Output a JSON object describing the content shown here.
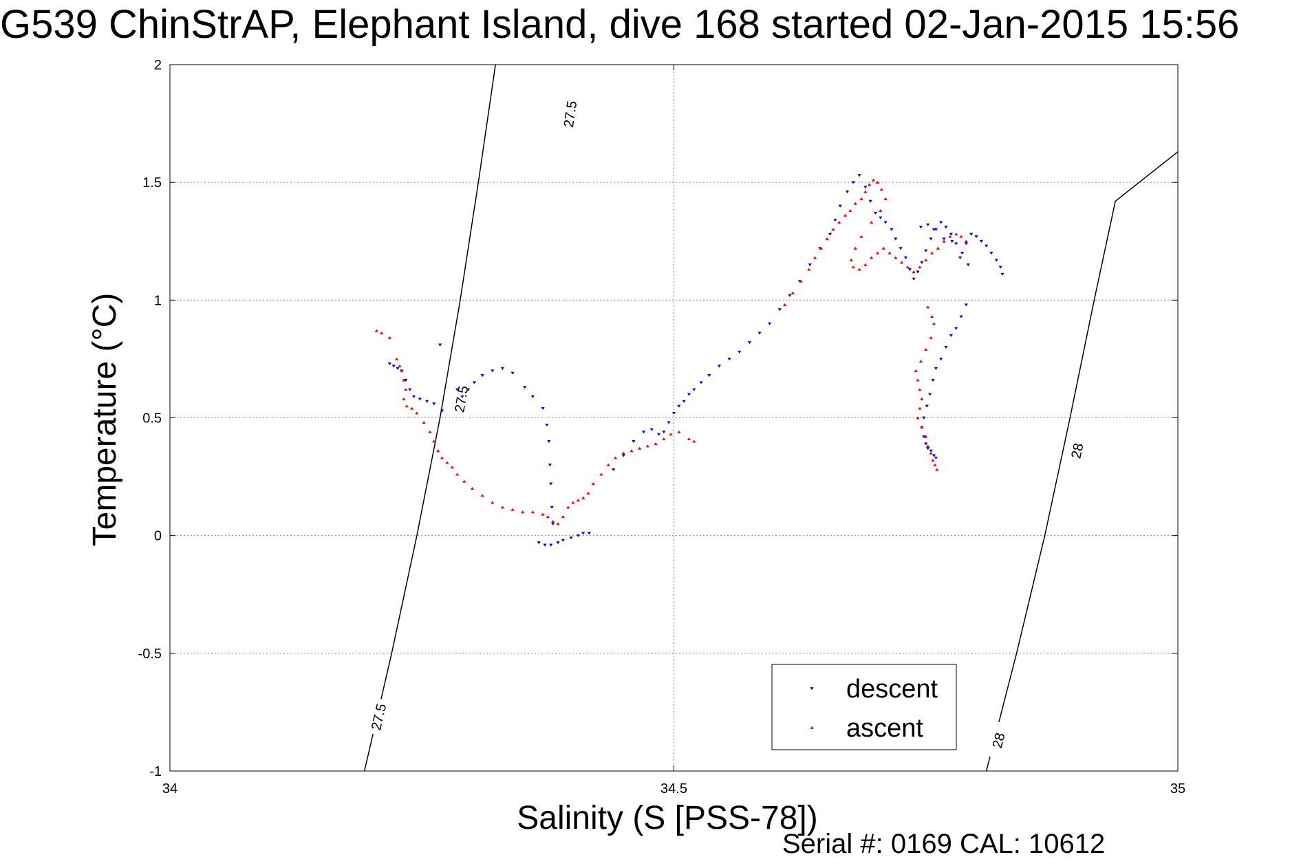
{
  "title": "G539 ChinStrAP, Elephant Island, dive 168 started 02-Jan-2015 15:56",
  "footer": "Serial #: 0169 CAL: 10612",
  "chart_data": {
    "type": "scatter",
    "title": "G539 ChinStrAP, Elephant Island, dive 168 started 02-Jan-2015 15:56",
    "xlabel": "Salinity (S [PSS-78])",
    "ylabel": "Temperature (°C)",
    "xlim": [
      34,
      35
    ],
    "ylim": [
      -1,
      2
    ],
    "x_ticks": [
      34,
      34.5,
      35
    ],
    "x_tick_labels": [
      "34",
      "34.5",
      "35"
    ],
    "y_ticks": [
      -1,
      -0.5,
      0,
      0.5,
      1,
      1.5,
      2
    ],
    "y_tick_labels": [
      "-1",
      "-0.5",
      "0",
      "0.5",
      "1",
      "1.5",
      "2"
    ],
    "grid": true,
    "legend_position": "bottom-right",
    "colors": {
      "descent": "#0000ff",
      "ascent": "#ff0000",
      "contour": "#000000",
      "grid": "#888888"
    },
    "series": [
      {
        "name": "descent",
        "marker": "triangle-down",
        "color": "#0000ff",
        "points": [
          [
            34.218,
            0.73
          ],
          [
            34.222,
            0.72
          ],
          [
            34.226,
            0.71
          ],
          [
            34.23,
            0.7
          ],
          [
            34.234,
            0.66
          ],
          [
            34.238,
            0.62
          ],
          [
            34.242,
            0.59
          ],
          [
            34.248,
            0.58
          ],
          [
            34.255,
            0.57
          ],
          [
            34.262,
            0.56
          ],
          [
            34.27,
            0.53
          ],
          [
            34.268,
            0.81
          ],
          [
            34.285,
            0.62
          ],
          [
            34.29,
            0.59
          ],
          [
            34.296,
            0.62
          ],
          [
            34.302,
            0.65
          ],
          [
            34.31,
            0.68
          ],
          [
            34.32,
            0.7
          ],
          [
            34.33,
            0.71
          ],
          [
            34.34,
            0.69
          ],
          [
            34.352,
            0.63
          ],
          [
            34.36,
            0.59
          ],
          [
            34.37,
            0.54
          ],
          [
            34.374,
            0.47
          ],
          [
            34.376,
            0.4
          ],
          [
            34.377,
            0.3
          ],
          [
            34.378,
            0.22
          ],
          [
            34.379,
            0.12
          ],
          [
            34.38,
            0.05
          ],
          [
            34.366,
            -0.03
          ],
          [
            34.372,
            -0.04
          ],
          [
            34.378,
            -0.04
          ],
          [
            34.385,
            -0.03
          ],
          [
            34.39,
            -0.02
          ],
          [
            34.398,
            -0.01
          ],
          [
            34.405,
            0.0
          ],
          [
            34.41,
            0.01
          ],
          [
            34.416,
            0.01
          ],
          [
            34.44,
            0.28
          ],
          [
            34.45,
            0.34
          ],
          [
            34.46,
            0.4
          ],
          [
            34.47,
            0.44
          ],
          [
            34.478,
            0.45
          ],
          [
            34.485,
            0.43
          ],
          [
            34.49,
            0.44
          ],
          [
            34.495,
            0.48
          ],
          [
            34.5,
            0.52
          ],
          [
            34.505,
            0.55
          ],
          [
            34.51,
            0.57
          ],
          [
            34.515,
            0.6
          ],
          [
            34.52,
            0.62
          ],
          [
            34.527,
            0.65
          ],
          [
            34.535,
            0.68
          ],
          [
            34.545,
            0.72
          ],
          [
            34.555,
            0.75
          ],
          [
            34.565,
            0.78
          ],
          [
            34.575,
            0.82
          ],
          [
            34.585,
            0.86
          ],
          [
            34.595,
            0.9
          ],
          [
            34.605,
            0.96
          ],
          [
            34.615,
            1.02
          ],
          [
            34.625,
            1.08
          ],
          [
            34.635,
            1.15
          ],
          [
            34.645,
            1.22
          ],
          [
            34.655,
            1.28
          ],
          [
            34.66,
            1.34
          ],
          [
            34.665,
            1.4
          ],
          [
            34.672,
            1.46
          ],
          [
            34.678,
            1.5
          ],
          [
            34.684,
            1.53
          ],
          [
            34.69,
            1.48
          ],
          [
            34.695,
            1.42
          ],
          [
            34.7,
            1.37
          ],
          [
            34.705,
            1.35
          ],
          [
            34.71,
            1.33
          ],
          [
            34.716,
            1.3
          ],
          [
            34.72,
            1.26
          ],
          [
            34.725,
            1.22
          ],
          [
            34.73,
            1.18
          ],
          [
            34.734,
            1.13
          ],
          [
            34.738,
            1.09
          ],
          [
            34.742,
            1.12
          ],
          [
            34.746,
            1.16
          ],
          [
            34.75,
            1.21
          ],
          [
            34.755,
            1.26
          ],
          [
            34.76,
            1.3
          ],
          [
            34.765,
            1.33
          ],
          [
            34.77,
            1.31
          ],
          [
            34.775,
            1.28
          ],
          [
            34.78,
            1.24
          ],
          [
            34.786,
            1.2
          ],
          [
            34.79,
            1.24
          ],
          [
            34.795,
            1.28
          ],
          [
            34.8,
            1.27
          ],
          [
            34.805,
            1.25
          ],
          [
            34.81,
            1.23
          ],
          [
            34.815,
            1.2
          ],
          [
            34.82,
            1.17
          ],
          [
            34.824,
            1.14
          ],
          [
            34.826,
            1.11
          ],
          [
            34.745,
            1.31
          ],
          [
            34.752,
            1.32
          ],
          [
            34.758,
            1.3
          ],
          [
            34.768,
            1.26
          ],
          [
            34.776,
            1.25
          ],
          [
            34.784,
            1.18
          ],
          [
            34.792,
            1.15
          ],
          [
            34.79,
            0.98
          ],
          [
            34.785,
            0.93
          ],
          [
            34.78,
            0.88
          ],
          [
            34.775,
            0.85
          ],
          [
            34.77,
            0.8
          ],
          [
            34.765,
            0.75
          ],
          [
            34.76,
            0.71
          ],
          [
            34.757,
            0.66
          ],
          [
            34.754,
            0.6
          ],
          [
            34.751,
            0.55
          ],
          [
            34.748,
            0.5
          ],
          [
            34.746,
            0.46
          ],
          [
            34.748,
            0.42
          ],
          [
            34.75,
            0.39
          ],
          [
            34.752,
            0.37
          ],
          [
            34.755,
            0.36
          ],
          [
            34.758,
            0.34
          ],
          [
            34.76,
            0.33
          ]
        ]
      },
      {
        "name": "ascent",
        "marker": "triangle-up",
        "color": "#ff0000",
        "points": [
          [
            34.205,
            0.87
          ],
          [
            34.21,
            0.86
          ],
          [
            34.218,
            0.84
          ],
          [
            34.225,
            0.75
          ],
          [
            34.228,
            0.72
          ],
          [
            34.23,
            0.7
          ],
          [
            34.232,
            0.66
          ],
          [
            34.234,
            0.62
          ],
          [
            34.232,
            0.58
          ],
          [
            34.235,
            0.55
          ],
          [
            34.24,
            0.54
          ],
          [
            34.245,
            0.52
          ],
          [
            34.252,
            0.48
          ],
          [
            34.258,
            0.44
          ],
          [
            34.262,
            0.4
          ],
          [
            34.266,
            0.36
          ],
          [
            34.27,
            0.33
          ],
          [
            34.275,
            0.31
          ],
          [
            34.28,
            0.29
          ],
          [
            34.285,
            0.26
          ],
          [
            34.292,
            0.23
          ],
          [
            34.3,
            0.2
          ],
          [
            34.31,
            0.17
          ],
          [
            34.32,
            0.14
          ],
          [
            34.33,
            0.12
          ],
          [
            34.34,
            0.11
          ],
          [
            34.35,
            0.1
          ],
          [
            34.36,
            0.1
          ],
          [
            34.37,
            0.09
          ],
          [
            34.375,
            0.08
          ],
          [
            34.38,
            0.06
          ],
          [
            34.385,
            0.05
          ],
          [
            34.39,
            0.08
          ],
          [
            34.395,
            0.12
          ],
          [
            34.4,
            0.14
          ],
          [
            34.405,
            0.15
          ],
          [
            34.41,
            0.16
          ],
          [
            34.415,
            0.18
          ],
          [
            34.42,
            0.22
          ],
          [
            34.428,
            0.26
          ],
          [
            34.435,
            0.3
          ],
          [
            34.442,
            0.33
          ],
          [
            34.45,
            0.35
          ],
          [
            34.458,
            0.36
          ],
          [
            34.466,
            0.37
          ],
          [
            34.474,
            0.38
          ],
          [
            34.482,
            0.39
          ],
          [
            34.49,
            0.41
          ],
          [
            34.497,
            0.43
          ],
          [
            34.505,
            0.44
          ],
          [
            34.515,
            0.41
          ],
          [
            34.52,
            0.4
          ],
          [
            34.61,
            0.98
          ],
          [
            34.618,
            1.03
          ],
          [
            34.626,
            1.08
          ],
          [
            34.634,
            1.13
          ],
          [
            34.64,
            1.18
          ],
          [
            34.646,
            1.22
          ],
          [
            34.652,
            1.26
          ],
          [
            34.658,
            1.3
          ],
          [
            34.664,
            1.33
          ],
          [
            34.67,
            1.36
          ],
          [
            34.675,
            1.38
          ],
          [
            34.68,
            1.41
          ],
          [
            34.686,
            1.43
          ],
          [
            34.69,
            1.46
          ],
          [
            34.694,
            1.49
          ],
          [
            34.698,
            1.51
          ],
          [
            34.702,
            1.5
          ],
          [
            34.706,
            1.47
          ],
          [
            34.71,
            1.43
          ],
          [
            34.705,
            1.38
          ],
          [
            34.696,
            1.33
          ],
          [
            34.686,
            1.27
          ],
          [
            34.68,
            1.22
          ],
          [
            34.676,
            1.17
          ],
          [
            34.678,
            1.14
          ],
          [
            34.684,
            1.13
          ],
          [
            34.69,
            1.15
          ],
          [
            34.696,
            1.18
          ],
          [
            34.702,
            1.2
          ],
          [
            34.708,
            1.22
          ],
          [
            34.714,
            1.2
          ],
          [
            34.72,
            1.18
          ],
          [
            34.726,
            1.16
          ],
          [
            34.732,
            1.14
          ],
          [
            34.738,
            1.12
          ],
          [
            34.744,
            1.14
          ],
          [
            34.75,
            1.17
          ],
          [
            34.756,
            1.2
          ],
          [
            34.762,
            1.22
          ],
          [
            34.768,
            1.25
          ],
          [
            34.774,
            1.27
          ],
          [
            34.78,
            1.28
          ],
          [
            34.785,
            1.27
          ],
          [
            34.79,
            1.25
          ],
          [
            34.752,
            0.97
          ],
          [
            34.756,
            0.93
          ],
          [
            34.758,
            0.9
          ],
          [
            34.755,
            0.84
          ],
          [
            34.75,
            0.79
          ],
          [
            34.745,
            0.74
          ],
          [
            34.74,
            0.7
          ],
          [
            34.742,
            0.66
          ],
          [
            34.744,
            0.62
          ],
          [
            34.746,
            0.58
          ],
          [
            34.744,
            0.54
          ],
          [
            34.742,
            0.5
          ],
          [
            34.746,
            0.46
          ],
          [
            34.75,
            0.42
          ],
          [
            34.752,
            0.38
          ],
          [
            34.755,
            0.35
          ],
          [
            34.757,
            0.32
          ],
          [
            34.759,
            0.3
          ],
          [
            34.761,
            0.28
          ]
        ]
      }
    ],
    "contours": [
      {
        "label": "27.5",
        "points": [
          [
            34.193,
            -1.0
          ],
          [
            34.22,
            -0.5
          ],
          [
            34.245,
            0.0
          ],
          [
            34.268,
            0.5
          ],
          [
            34.288,
            1.0
          ],
          [
            34.306,
            1.5
          ],
          [
            34.323,
            2.0
          ]
        ],
        "label_positions": [
          [
            34.207,
            -0.77
          ],
          [
            34.289,
            0.58
          ],
          [
            34.397,
            1.79
          ]
        ]
      },
      {
        "label": "28",
        "points": [
          [
            34.81,
            -1.0
          ],
          [
            34.84,
            -0.5
          ],
          [
            34.868,
            0.0
          ],
          [
            34.893,
            0.5
          ],
          [
            34.917,
            1.0
          ],
          [
            34.938,
            1.42
          ],
          [
            35.0,
            1.63
          ]
        ],
        "label_positions": [
          [
            34.822,
            -0.87
          ],
          [
            34.9,
            0.36
          ]
        ]
      }
    ],
    "legend": [
      {
        "name": "descent",
        "marker": "triangle-down",
        "color": "#0000ff"
      },
      {
        "name": "ascent",
        "marker": "triangle-up",
        "color": "#ff0000"
      }
    ]
  }
}
